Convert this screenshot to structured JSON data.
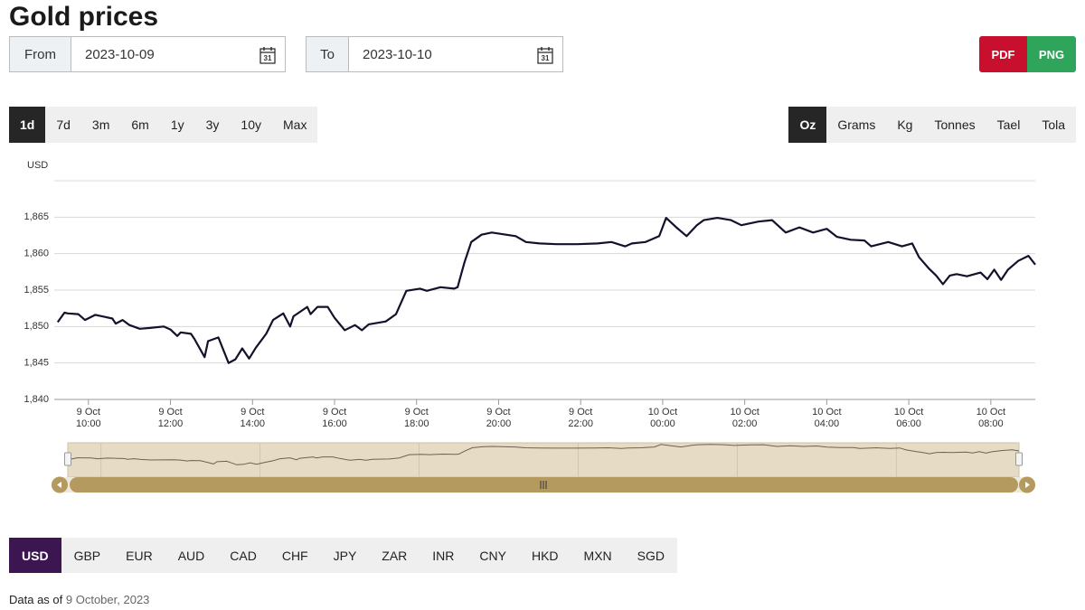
{
  "header": {
    "title": "Gold prices"
  },
  "date_range": {
    "from_label": "From",
    "from_value": "2023-10-09",
    "to_label": "To",
    "to_value": "2023-10-10",
    "calendar_icon": "31"
  },
  "export_buttons": [
    "PDF",
    "PNG"
  ],
  "time_ranges": {
    "options": [
      "1d",
      "7d",
      "3m",
      "6m",
      "1y",
      "3y",
      "10y",
      "Max"
    ],
    "selected": "1d"
  },
  "units": {
    "options": [
      "Oz",
      "Grams",
      "Kg",
      "Tonnes",
      "Tael",
      "Tola"
    ],
    "selected": "Oz"
  },
  "currencies": {
    "options": [
      "USD",
      "GBP",
      "EUR",
      "AUD",
      "CAD",
      "CHF",
      "JPY",
      "ZAR",
      "INR",
      "CNY",
      "HKD",
      "MXN",
      "SGD"
    ],
    "selected": "USD"
  },
  "chart_data": {
    "type": "line",
    "y_axis_label": "USD",
    "color": "#14112b",
    "grid": true,
    "x": [
      "9 Oct 09:15",
      "9 Oct 09:25",
      "9 Oct 09:30",
      "9 Oct 09:45",
      "9 Oct 09:55",
      "9 Oct 10:10",
      "9 Oct 10:25",
      "9 Oct 10:35",
      "9 Oct 10:40",
      "9 Oct 10:50",
      "9 Oct 11:00",
      "9 Oct 11:15",
      "9 Oct 11:30",
      "9 Oct 11:50",
      "9 Oct 12:00",
      "9 Oct 12:10",
      "9 Oct 12:15",
      "9 Oct 12:30",
      "9 Oct 12:35",
      "9 Oct 12:50",
      "9 Oct 12:55",
      "9 Oct 13:10",
      "9 Oct 13:25",
      "9 Oct 13:35",
      "9 Oct 13:45",
      "9 Oct 13:55",
      "9 Oct 14:05",
      "9 Oct 14:20",
      "9 Oct 14:30",
      "9 Oct 14:45",
      "9 Oct 14:55",
      "9 Oct 15:00",
      "9 Oct 15:20",
      "9 Oct 15:25",
      "9 Oct 15:35",
      "9 Oct 15:50",
      "9 Oct 16:00",
      "9 Oct 16:15",
      "9 Oct 16:30",
      "9 Oct 16:40",
      "9 Oct 16:50",
      "9 Oct 17:15",
      "9 Oct 17:30",
      "9 Oct 17:45",
      "9 Oct 18:05",
      "9 Oct 18:15",
      "9 Oct 18:35",
      "9 Oct 18:55",
      "9 Oct 19:00",
      "9 Oct 19:10",
      "9 Oct 19:20",
      "9 Oct 19:35",
      "9 Oct 19:50",
      "9 Oct 20:25",
      "9 Oct 20:40",
      "9 Oct 21:00",
      "9 Oct 21:25",
      "9 Oct 21:55",
      "9 Oct 22:25",
      "9 Oct 22:45",
      "9 Oct 23:05",
      "9 Oct 23:15",
      "9 Oct 23:35",
      "9 Oct 23:55",
      "10 Oct 00:05",
      "10 Oct 00:20",
      "10 Oct 00:35",
      "10 Oct 00:50",
      "10 Oct 01:00",
      "10 Oct 01:20",
      "10 Oct 01:40",
      "10 Oct 01:55",
      "10 Oct 02:20",
      "10 Oct 02:40",
      "10 Oct 03:00",
      "10 Oct 03:20",
      "10 Oct 03:40",
      "10 Oct 04:00",
      "10 Oct 04:15",
      "10 Oct 04:35",
      "10 Oct 04:55",
      "10 Oct 05:05",
      "10 Oct 05:30",
      "10 Oct 05:50",
      "10 Oct 06:05",
      "10 Oct 06:15",
      "10 Oct 06:30",
      "10 Oct 06:40",
      "10 Oct 06:50",
      "10 Oct 07:00",
      "10 Oct 07:10",
      "10 Oct 07:25",
      "10 Oct 07:45",
      "10 Oct 07:55",
      "10 Oct 08:05",
      "10 Oct 08:15",
      "10 Oct 08:25",
      "10 Oct 08:40",
      "10 Oct 08:55",
      "10 Oct 09:05"
    ],
    "values": [
      1850.6,
      1851.9,
      1851.8,
      1851.7,
      1850.9,
      1851.6,
      1851.3,
      1851.1,
      1850.4,
      1850.9,
      1850.2,
      1849.7,
      1849.8,
      1850.0,
      1849.6,
      1848.7,
      1849.2,
      1849.0,
      1848.3,
      1845.8,
      1848.0,
      1848.5,
      1845.0,
      1845.5,
      1847.0,
      1845.6,
      1847.1,
      1849.0,
      1850.9,
      1851.8,
      1850.0,
      1851.4,
      1852.7,
      1851.7,
      1852.7,
      1852.7,
      1851.2,
      1849.5,
      1850.2,
      1849.5,
      1850.3,
      1850.7,
      1851.7,
      1854.9,
      1855.2,
      1854.9,
      1855.4,
      1855.2,
      1855.4,
      1858.8,
      1861.6,
      1862.6,
      1862.9,
      1862.4,
      1861.6,
      1861.4,
      1861.3,
      1861.3,
      1861.4,
      1861.6,
      1861.0,
      1861.4,
      1861.6,
      1862.4,
      1864.9,
      1863.6,
      1862.4,
      1863.9,
      1864.6,
      1864.9,
      1864.6,
      1863.9,
      1864.4,
      1864.6,
      1862.9,
      1863.6,
      1862.9,
      1863.4,
      1862.3,
      1861.9,
      1861.8,
      1861.0,
      1861.6,
      1861.0,
      1861.4,
      1859.5,
      1857.9,
      1857.0,
      1855.8,
      1857.0,
      1857.2,
      1856.9,
      1857.4,
      1856.5,
      1857.8,
      1856.4,
      1857.8,
      1859.0,
      1859.7,
      1858.5
    ],
    "xlim": [
      "9 Oct 09:10",
      "10 Oct 09:05"
    ],
    "xticks": [
      "9 Oct 10:00",
      "9 Oct 12:00",
      "9 Oct 14:00",
      "9 Oct 16:00",
      "9 Oct 18:00",
      "9 Oct 20:00",
      "9 Oct 22:00",
      "10 Oct 00:00",
      "10 Oct 02:00",
      "10 Oct 04:00",
      "10 Oct 06:00",
      "10 Oct 08:00"
    ],
    "ylim": [
      1840,
      1870
    ],
    "yticks": [
      {
        "value": 1840,
        "label": "1,840"
      },
      {
        "value": 1845,
        "label": "1,845"
      },
      {
        "value": 1850,
        "label": "1,850"
      },
      {
        "value": 1855,
        "label": "1,855"
      },
      {
        "value": 1860,
        "label": "1,860"
      },
      {
        "value": 1865,
        "label": "1,865"
      }
    ]
  },
  "footer": {
    "label": "Data as of",
    "date": "9 October, 2023"
  }
}
